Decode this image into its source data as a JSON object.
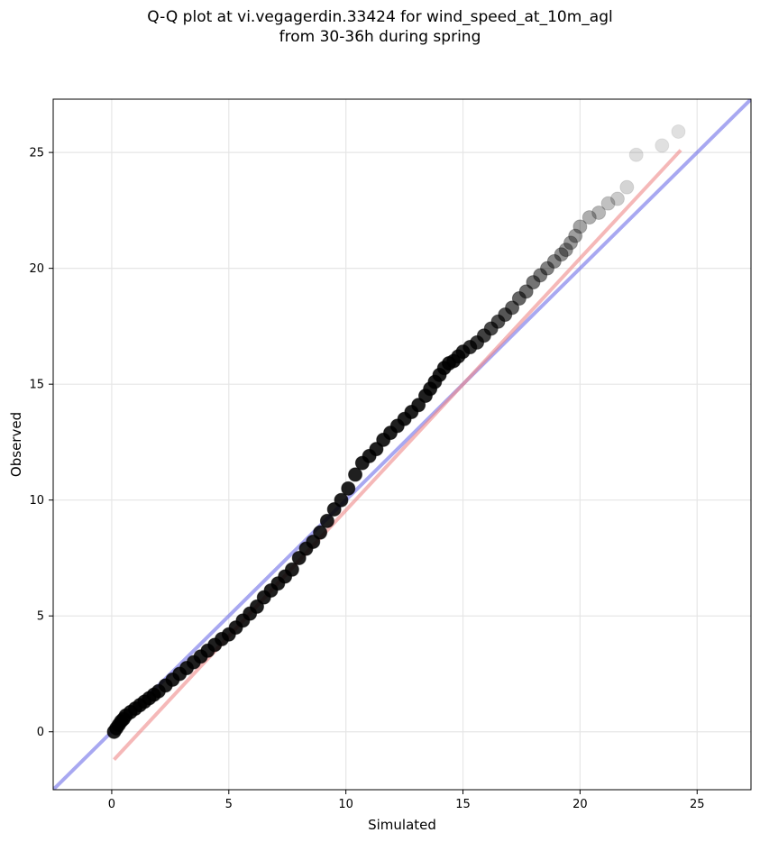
{
  "chart_data": {
    "type": "scatter",
    "title_lines": [
      "Q-Q plot at vi.vegagerdin.33424 for wind_speed_at_10m_agl",
      "from 30-36h during spring"
    ],
    "xlabel": "Simulated",
    "ylabel": "Observed",
    "xlim": [
      -2.5,
      27.3
    ],
    "ylim": [
      -2.5,
      27.3
    ],
    "xticks": [
      0,
      5,
      10,
      15,
      20,
      25
    ],
    "yticks": [
      0,
      5,
      10,
      15,
      20,
      25
    ],
    "grid": true,
    "series": [
      {
        "kind": "points",
        "color": "#000000",
        "x": [
          0.1,
          0.2,
          0.3,
          0.4,
          0.5,
          0.6,
          0.8,
          1.0,
          1.2,
          1.4,
          1.6,
          1.8,
          2.0,
          2.3,
          2.6,
          2.9,
          3.2,
          3.5,
          3.8,
          4.1,
          4.4,
          4.7,
          5.0,
          5.3,
          5.6,
          5.9,
          6.2,
          6.5,
          6.8,
          7.1,
          7.4,
          7.7,
          8.0,
          8.3,
          8.6,
          8.9,
          9.2,
          9.5,
          9.8,
          10.1,
          10.4,
          10.7,
          11.0,
          11.3,
          11.6,
          11.9,
          12.2,
          12.5,
          12.8,
          13.1,
          13.4,
          13.6,
          13.8,
          14.0,
          14.2,
          14.4,
          14.6,
          14.8,
          15.0,
          15.3,
          15.6,
          15.9,
          16.2,
          16.5,
          16.8,
          17.1,
          17.4,
          17.7,
          18.0,
          18.3,
          18.6,
          18.9,
          19.2,
          19.4,
          19.6,
          19.8,
          20.0,
          20.4,
          20.8,
          21.2,
          21.6,
          22.0,
          22.4,
          23.5,
          24.2
        ],
        "y": [
          0.0,
          0.15,
          0.3,
          0.45,
          0.55,
          0.7,
          0.85,
          1.0,
          1.15,
          1.3,
          1.45,
          1.6,
          1.75,
          2.0,
          2.25,
          2.5,
          2.75,
          3.0,
          3.25,
          3.5,
          3.75,
          4.0,
          4.2,
          4.5,
          4.8,
          5.1,
          5.4,
          5.8,
          6.1,
          6.4,
          6.7,
          7.0,
          7.5,
          7.9,
          8.2,
          8.6,
          9.1,
          9.6,
          10.0,
          10.5,
          11.1,
          11.6,
          11.9,
          12.2,
          12.6,
          12.9,
          13.2,
          13.5,
          13.8,
          14.1,
          14.5,
          14.8,
          15.1,
          15.4,
          15.7,
          15.9,
          16.0,
          16.2,
          16.4,
          16.6,
          16.8,
          17.1,
          17.4,
          17.7,
          18.0,
          18.3,
          18.7,
          19.0,
          19.4,
          19.7,
          20.0,
          20.3,
          20.6,
          20.8,
          21.1,
          21.4,
          21.8,
          22.2,
          22.4,
          22.8,
          23.0,
          23.5,
          24.9,
          25.3,
          25.9
        ]
      },
      {
        "kind": "line",
        "name": "",
        "color": "#6f6fe8",
        "x": [
          -2.5,
          27.3
        ],
        "y": [
          -2.5,
          27.3
        ]
      },
      {
        "kind": "line",
        "name": "",
        "color": "#f08a8a",
        "x": [
          0.1,
          24.3
        ],
        "y": [
          -1.2,
          25.1
        ]
      }
    ]
  }
}
